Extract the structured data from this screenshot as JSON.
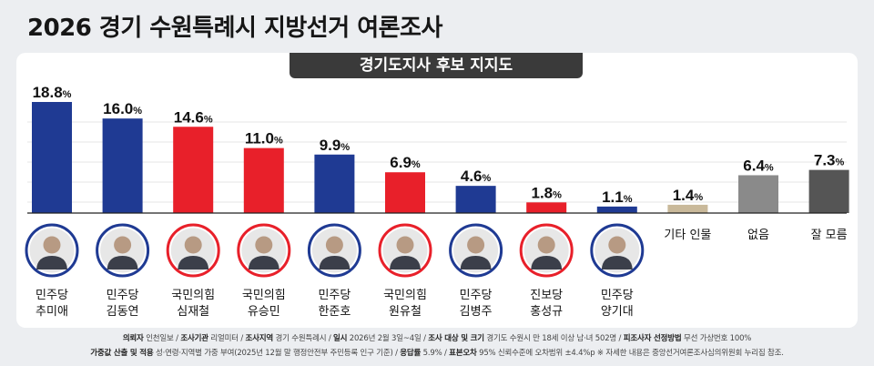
{
  "header": {
    "title": "2026 경기 수원특례시 지방선거 여론조사"
  },
  "chart_data": {
    "type": "bar",
    "title": "경기도지사 후보 지지도",
    "ylim": [
      0,
      20
    ],
    "unit": "%",
    "categories": [
      {
        "party": "민주당",
        "name": "추미애",
        "value": 18.8,
        "color": "#1f3a93",
        "photo": true
      },
      {
        "party": "민주당",
        "name": "김동연",
        "value": 16.0,
        "color": "#1f3a93",
        "photo": true
      },
      {
        "party": "국민의힘",
        "name": "심재철",
        "value": 14.6,
        "color": "#e8202a",
        "photo": true
      },
      {
        "party": "국민의힘",
        "name": "유승민",
        "value": 11.0,
        "color": "#e8202a",
        "photo": true
      },
      {
        "party": "민주당",
        "name": "한준호",
        "value": 9.9,
        "color": "#1f3a93",
        "photo": true
      },
      {
        "party": "국민의힘",
        "name": "원유철",
        "value": 6.9,
        "color": "#e8202a",
        "photo": true
      },
      {
        "party": "민주당",
        "name": "김병주",
        "value": 4.6,
        "color": "#1f3a93",
        "photo": true
      },
      {
        "party": "진보당",
        "name": "홍성규",
        "value": 1.8,
        "color": "#e8202a",
        "photo": true
      },
      {
        "party": "민주당",
        "name": "양기대",
        "value": 1.1,
        "color": "#1f3a93",
        "photo": true
      },
      {
        "party": "",
        "name": "기타 인물",
        "value": 1.4,
        "color": "#c9b99a",
        "photo": false
      },
      {
        "party": "",
        "name": "없음",
        "value": 6.4,
        "color": "#8a8a8a",
        "photo": false
      },
      {
        "party": "",
        "name": "잘 모름",
        "value": 7.3,
        "color": "#555555",
        "photo": false
      }
    ]
  },
  "footer": {
    "line1": [
      {
        "k": "의뢰자",
        "v": "인천일보"
      },
      {
        "k": "조사기관",
        "v": "리얼미터"
      },
      {
        "k": "조사지역",
        "v": "경기 수원특례시"
      },
      {
        "k": "일시",
        "v": "2026년 2월 3일~4일"
      },
      {
        "k": "조사 대상 및 크기",
        "v": "경기도 수원시 만 18세 이상 남·녀 502명"
      },
      {
        "k": "피조사자 선정방법",
        "v": "무선 가상번호 100%"
      }
    ],
    "line2": [
      {
        "k": "가중값 산출 및 적용",
        "v": "성·연령·지역별 가중 부여(2025년 12월 말 행정안전부 주민등록 인구 기준)"
      },
      {
        "k": "응답률",
        "v": "5.9%"
      },
      {
        "k": "표본오차",
        "v": "95% 신뢰수준에 오차범위 ±4.4%p"
      }
    ],
    "note": "※ 자세한 내용은 중앙선거여론조사심의위원회 누리집 참조."
  }
}
